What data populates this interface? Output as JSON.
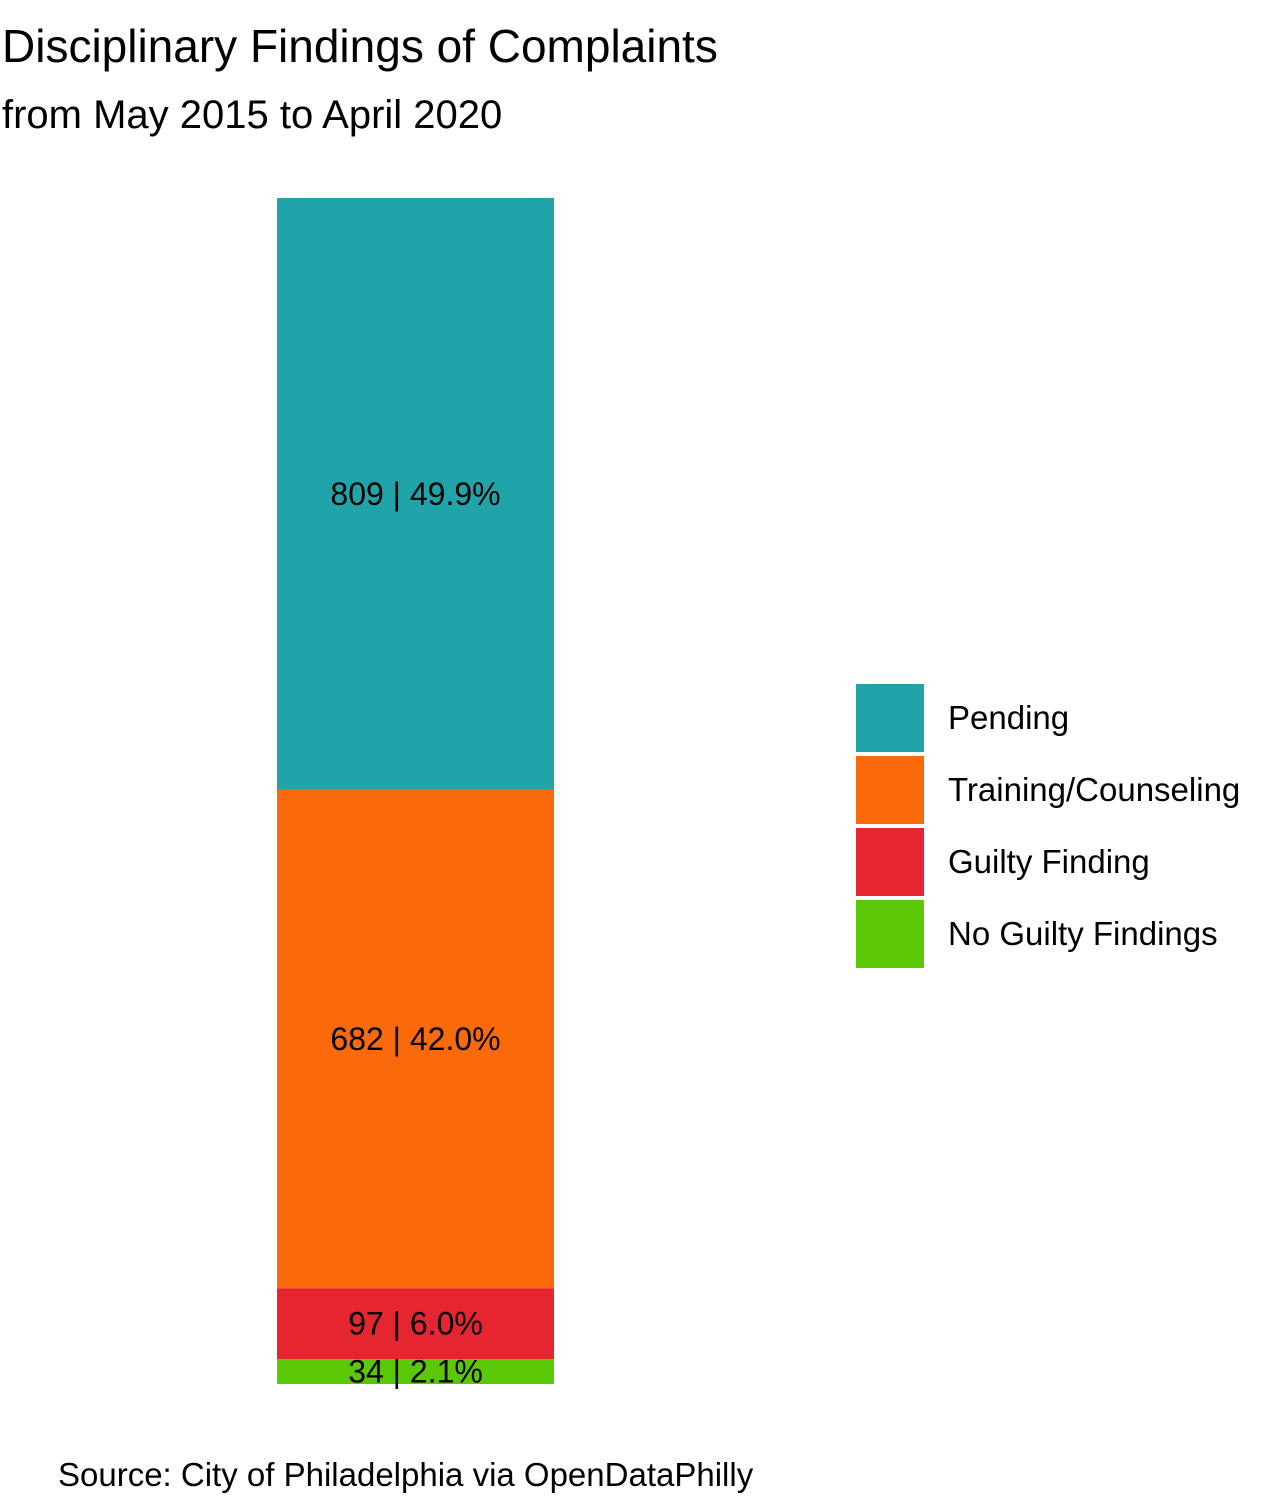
{
  "chart_data": {
    "type": "bar",
    "stacked": true,
    "title": "Disciplinary Findings of Complaints",
    "subtitle": "from May 2015 to April 2020",
    "caption": "Source: City of Philadelphia via OpenDataPhilly",
    "xlabel": "",
    "ylabel": "",
    "grid": false,
    "legend_position": "right",
    "categories": [
      ""
    ],
    "series": [
      {
        "name": "Pending",
        "values": [
          809
        ],
        "percent": "49.9%",
        "label": "809 | 49.9%",
        "color": "#20A4AA"
      },
      {
        "name": "Training/Counseling",
        "values": [
          682
        ],
        "percent": "42.0%",
        "label": "682 | 42.0%",
        "color": "#FA6A0A"
      },
      {
        "name": "Guilty Finding",
        "values": [
          97
        ],
        "percent": "6.0%",
        "label": "97 | 6.0%",
        "color": "#E5252F"
      },
      {
        "name": "No Guilty Findings",
        "values": [
          34
        ],
        "percent": "2.1%",
        "label": "34 | 2.1%",
        "color": "#5BC805"
      }
    ]
  }
}
